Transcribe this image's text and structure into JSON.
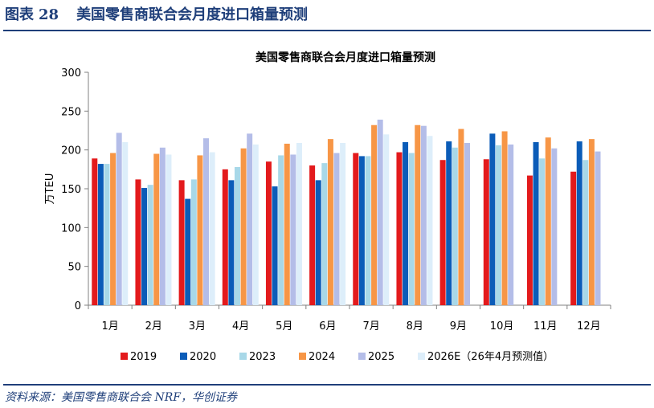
{
  "header": {
    "figure_label": "图表",
    "figure_number": "28",
    "figure_title": "美国零售商联合会月度进口箱量预测"
  },
  "source": "资料来源：美国零售商联合会 NRF，华创证券",
  "chart_data": {
    "type": "bar",
    "title": "美国零售商联合会月度进口箱量预测",
    "xlabel": "",
    "ylabel": "万TEU",
    "ylim": [
      0,
      300
    ],
    "yticks": [
      0,
      50,
      100,
      150,
      200,
      250,
      300
    ],
    "grid": false,
    "legend_position": "bottom",
    "categories": [
      "1月",
      "2月",
      "3月",
      "4月",
      "5月",
      "6月",
      "7月",
      "8月",
      "9月",
      "10月",
      "11月",
      "12月"
    ],
    "series": [
      {
        "name": "2019",
        "color": "#e31a1c",
        "values": [
          189,
          162,
          161,
          175,
          185,
          180,
          196,
          197,
          187,
          188,
          167,
          172
        ]
      },
      {
        "name": "2020",
        "color": "#0b5cb8",
        "values": [
          182,
          151,
          137,
          161,
          153,
          161,
          192,
          210,
          211,
          221,
          210,
          211
        ]
      },
      {
        "name": "2023",
        "color": "#a8d8e8",
        "values": [
          182,
          155,
          162,
          178,
          193,
          183,
          192,
          196,
          203,
          206,
          189,
          187
        ]
      },
      {
        "name": "2024",
        "color": "#f79646",
        "values": [
          196,
          195,
          193,
          202,
          208,
          214,
          232,
          232,
          227,
          224,
          216,
          214
        ]
      },
      {
        "name": "2025",
        "color": "#b4bde8",
        "values": [
          222,
          203,
          215,
          221,
          194,
          196,
          239,
          231,
          209,
          207,
          202,
          198
        ]
      },
      {
        "name": "2026E（26年4月预测值）",
        "color": "#ddeefa",
        "values": [
          210,
          194,
          197,
          207,
          209,
          209,
          220,
          218,
          null,
          null,
          null,
          null
        ]
      }
    ]
  }
}
